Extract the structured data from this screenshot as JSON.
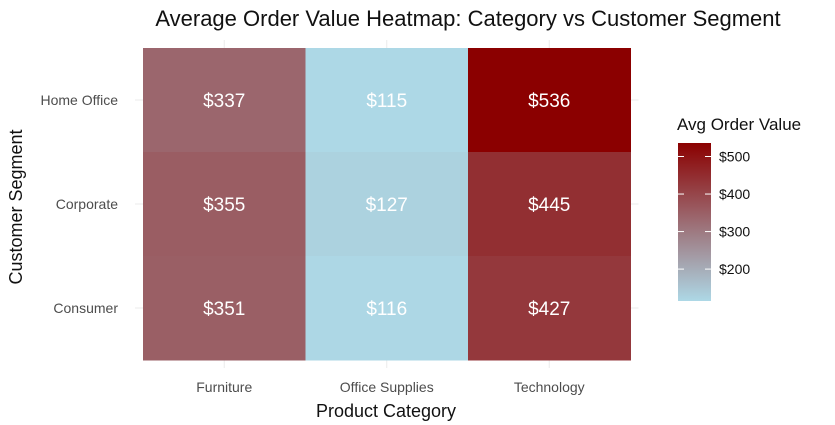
{
  "chart_data": {
    "type": "heatmap",
    "title": "Average Order Value Heatmap: Category vs Customer Segment",
    "xlabel": "Product Category",
    "ylabel": "Customer Segment",
    "x_categories": [
      "Furniture",
      "Office Supplies",
      "Technology"
    ],
    "y_categories": [
      "Home Office",
      "Corporate",
      "Consumer"
    ],
    "values": [
      [
        337,
        115,
        536
      ],
      [
        355,
        127,
        445
      ],
      [
        351,
        116,
        427
      ]
    ],
    "cell_labels": [
      [
        "$337",
        "$115",
        "$536"
      ],
      [
        "$355",
        "$127",
        "$445"
      ],
      [
        "$351",
        "$116",
        "$427"
      ]
    ],
    "colorscale": {
      "low_color": "#add8e6",
      "high_color": "#8b0000",
      "min": 115,
      "max": 536
    },
    "legend": {
      "title": "Avg Order Value",
      "position": "right",
      "ticks": [
        200,
        300,
        400,
        500
      ],
      "tick_labels": [
        "$200",
        "$300",
        "$400",
        "$500"
      ]
    },
    "grid": true
  }
}
